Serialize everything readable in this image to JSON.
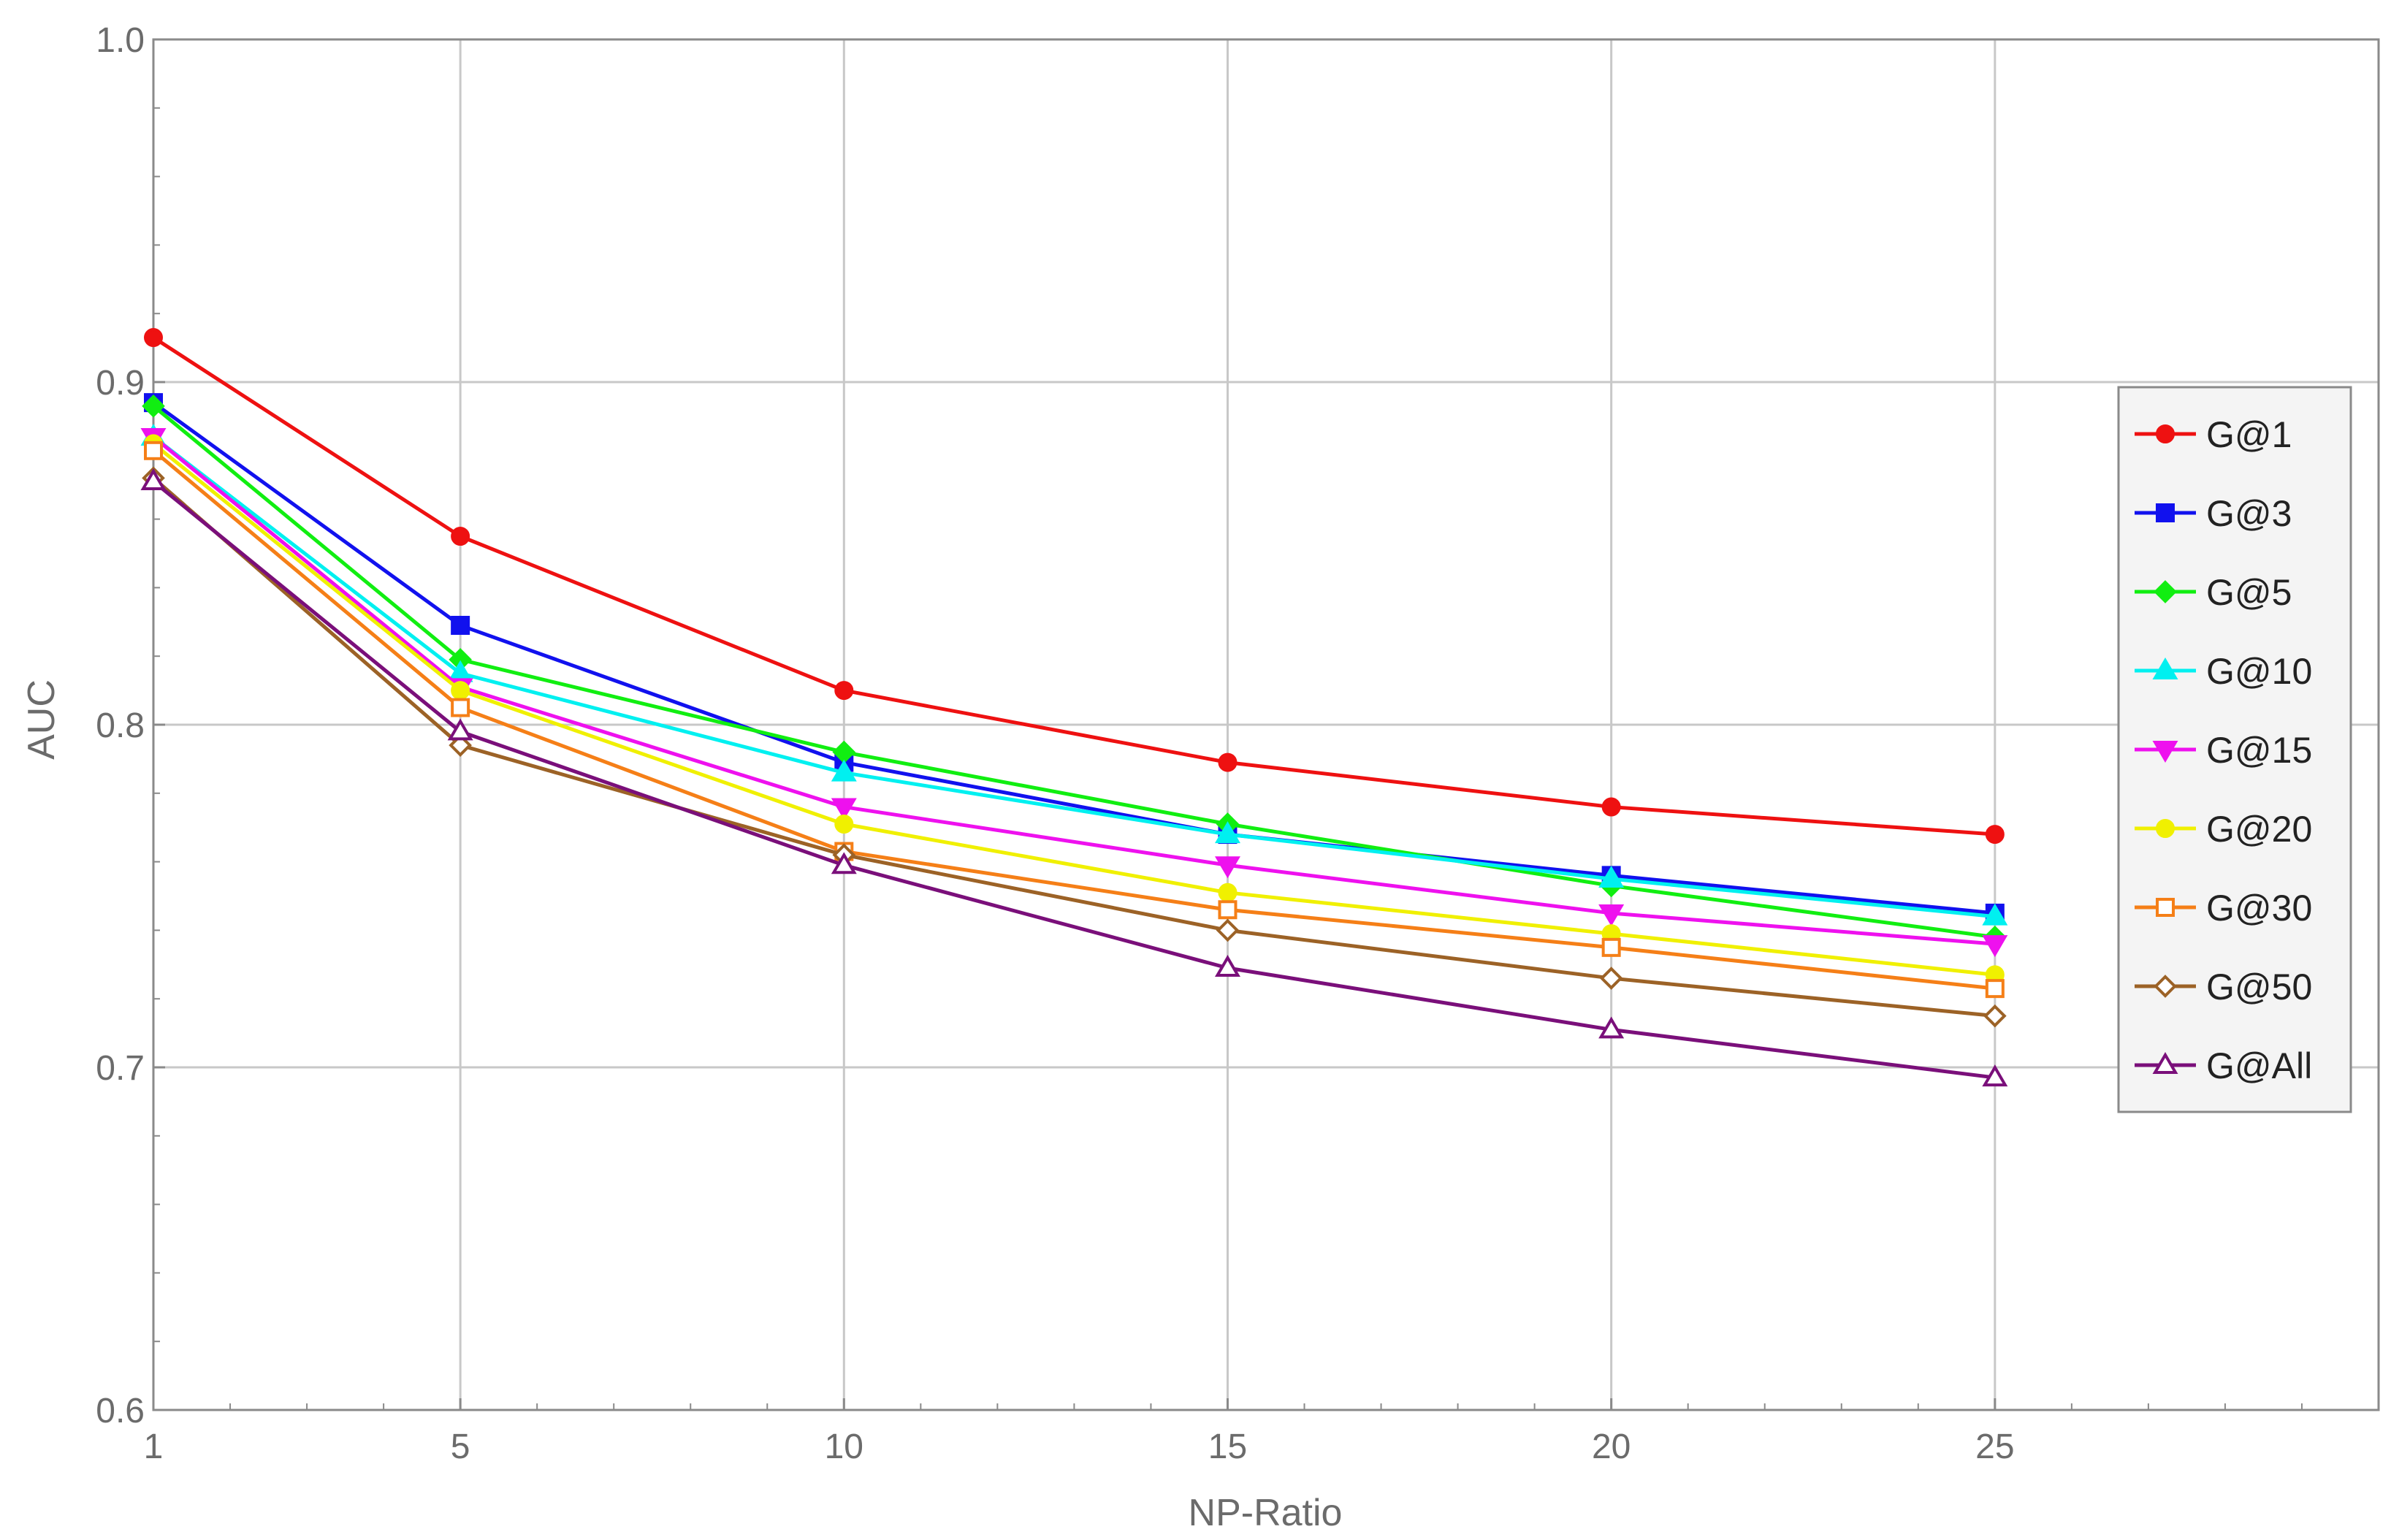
{
  "chart_data": {
    "type": "line",
    "title": "",
    "xlabel": "NP-Ratio",
    "ylabel": "AUC",
    "x": [
      1,
      5,
      10,
      15,
      20,
      25
    ],
    "xlim": [
      1,
      30
    ],
    "ylim": [
      0.6,
      1.0
    ],
    "xticks": [
      "1",
      "5",
      "10",
      "15",
      "20",
      "25"
    ],
    "yticks": [
      "0.6",
      "0.7",
      "0.8",
      "0.9",
      "1.0"
    ],
    "grid": true,
    "legend_position": "right",
    "series": [
      {
        "name": "G@1",
        "color": "#ee1111",
        "marker": "circle",
        "filled": true,
        "values": [
          0.913,
          0.855,
          0.81,
          0.789,
          0.776,
          0.768
        ]
      },
      {
        "name": "G@3",
        "color": "#1111ee",
        "marker": "square",
        "filled": true,
        "values": [
          0.894,
          0.829,
          0.789,
          0.768,
          0.756,
          0.745
        ]
      },
      {
        "name": "G@5",
        "color": "#11ee11",
        "marker": "diamond",
        "filled": true,
        "values": [
          0.893,
          0.819,
          0.792,
          0.771,
          0.753,
          0.738
        ]
      },
      {
        "name": "G@10",
        "color": "#00f0f0",
        "marker": "triangle-up",
        "filled": true,
        "values": [
          0.884,
          0.815,
          0.786,
          0.768,
          0.755,
          0.744
        ]
      },
      {
        "name": "G@15",
        "color": "#ee11ee",
        "marker": "triangle-down",
        "filled": true,
        "values": [
          0.884,
          0.811,
          0.776,
          0.759,
          0.745,
          0.736
        ]
      },
      {
        "name": "G@20",
        "color": "#f0f000",
        "marker": "circle",
        "filled": true,
        "values": [
          0.882,
          0.81,
          0.771,
          0.751,
          0.739,
          0.727
        ]
      },
      {
        "name": "G@30",
        "color": "#f57f17",
        "marker": "square",
        "filled": false,
        "values": [
          0.88,
          0.805,
          0.763,
          0.746,
          0.735,
          0.723
        ]
      },
      {
        "name": "G@50",
        "color": "#9c6226",
        "marker": "diamond",
        "filled": false,
        "values": [
          0.872,
          0.794,
          0.762,
          0.74,
          0.726,
          0.715
        ]
      },
      {
        "name": "G@All",
        "color": "#7a0f7a",
        "marker": "triangle-up",
        "filled": false,
        "values": [
          0.871,
          0.798,
          0.759,
          0.729,
          0.711,
          0.697
        ]
      }
    ]
  }
}
